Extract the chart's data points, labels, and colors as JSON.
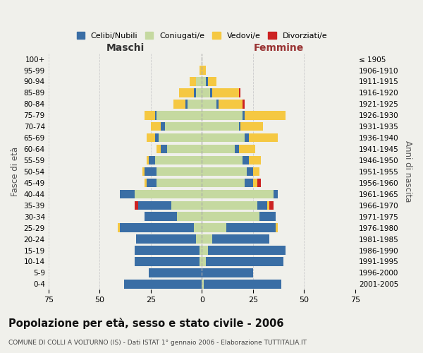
{
  "age_groups": [
    "100+",
    "95-99",
    "90-94",
    "85-89",
    "80-84",
    "75-79",
    "70-74",
    "65-69",
    "60-64",
    "55-59",
    "50-54",
    "45-49",
    "40-44",
    "35-39",
    "30-34",
    "25-29",
    "20-24",
    "15-19",
    "10-14",
    "5-9",
    "0-4"
  ],
  "birth_years": [
    "≤ 1905",
    "1906-1910",
    "1911-1915",
    "1916-1920",
    "1921-1925",
    "1926-1930",
    "1931-1935",
    "1936-1940",
    "1941-1945",
    "1946-1950",
    "1951-1955",
    "1956-1960",
    "1961-1965",
    "1966-1970",
    "1971-1975",
    "1976-1980",
    "1981-1985",
    "1986-1990",
    "1991-1995",
    "1996-2000",
    "2001-2005"
  ],
  "males": {
    "celibi": [
      0,
      0,
      0,
      1,
      1,
      1,
      2,
      2,
      3,
      3,
      6,
      5,
      7,
      16,
      16,
      36,
      29,
      32,
      32,
      26,
      38
    ],
    "coniugati": [
      0,
      0,
      3,
      3,
      7,
      22,
      18,
      21,
      17,
      23,
      22,
      22,
      33,
      15,
      12,
      4,
      3,
      1,
      1,
      0,
      0
    ],
    "vedovi": [
      0,
      1,
      3,
      7,
      6,
      5,
      5,
      4,
      2,
      1,
      1,
      1,
      0,
      0,
      0,
      1,
      0,
      0,
      0,
      0,
      0
    ],
    "divorziati": [
      0,
      0,
      0,
      0,
      0,
      0,
      0,
      0,
      0,
      0,
      0,
      0,
      0,
      2,
      0,
      0,
      0,
      0,
      0,
      0,
      0
    ]
  },
  "females": {
    "nubili": [
      0,
      0,
      1,
      1,
      1,
      1,
      1,
      2,
      2,
      3,
      3,
      4,
      2,
      5,
      8,
      24,
      28,
      38,
      38,
      25,
      38
    ],
    "coniugate": [
      0,
      0,
      2,
      4,
      7,
      20,
      18,
      21,
      16,
      20,
      22,
      21,
      35,
      27,
      28,
      12,
      5,
      3,
      2,
      0,
      1
    ],
    "vedove": [
      0,
      2,
      4,
      13,
      12,
      20,
      11,
      14,
      8,
      6,
      3,
      2,
      0,
      1,
      0,
      1,
      0,
      0,
      0,
      0,
      0
    ],
    "divorziate": [
      0,
      0,
      0,
      1,
      1,
      0,
      0,
      0,
      0,
      0,
      0,
      2,
      0,
      2,
      0,
      0,
      0,
      0,
      0,
      0,
      0
    ]
  },
  "colors": {
    "celibi": "#3A6EA5",
    "coniugati": "#C5D9A0",
    "vedovi": "#F5C842",
    "divorziati": "#CC2222"
  },
  "legend_labels": [
    "Celibi/Nubili",
    "Coniugati/e",
    "Vedovi/e",
    "Divorziati/e"
  ],
  "xlabel_left": "Maschi",
  "xlabel_right": "Femmine",
  "ylabel_left": "Fasce di età",
  "ylabel_right": "Anni di nascita",
  "title": "Popolazione per età, sesso e stato civile - 2006",
  "subtitle": "COMUNE DI COLLI A VOLTURNO (IS) - Dati ISTAT 1° gennaio 2006 - Elaborazione TUTTITALIA.IT",
  "xlim": 75,
  "background_color": "#f0f0eb",
  "grid_color": "#cccccc"
}
